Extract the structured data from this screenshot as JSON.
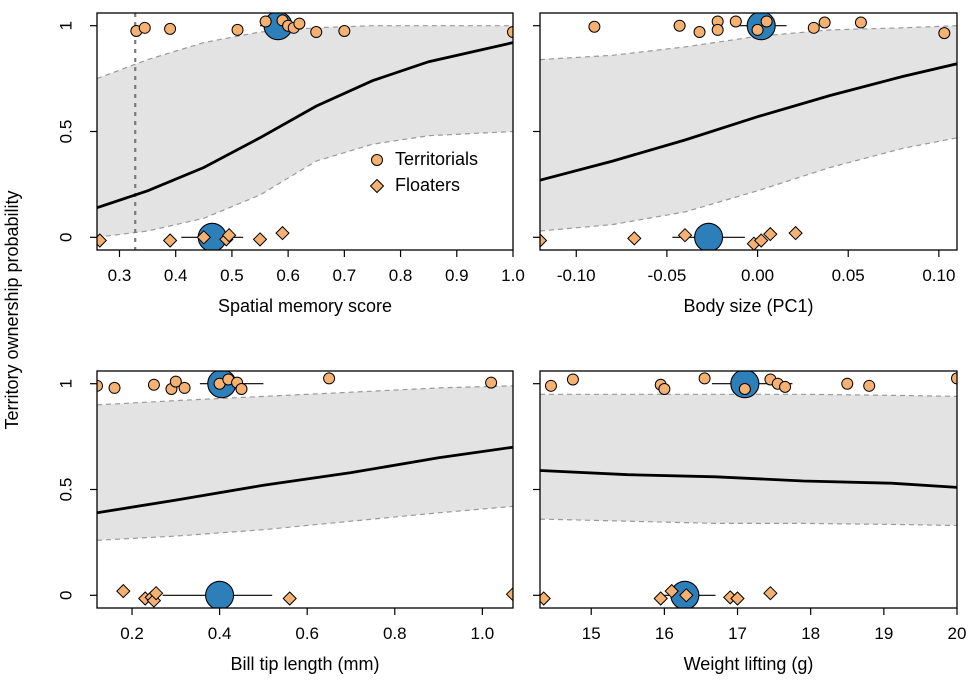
{
  "figure": {
    "ylabel": "Territory ownership probability",
    "legend": {
      "items": [
        {
          "label": "Territorials",
          "shape": "circle"
        },
        {
          "label": "Floaters",
          "shape": "diamond"
        }
      ],
      "placement": "lower-right of top-left panel"
    },
    "colors": {
      "points": "#F5B172",
      "mean": "#2C7FB8",
      "band": "#E3E3E3",
      "band_edge": "#9A9A9A",
      "fit": "#000000",
      "threshold": "#7A7A7A"
    }
  },
  "chart_data": [
    {
      "type": "line",
      "xlabel": "Spatial memory score",
      "xlim": [
        0.26,
        1.0
      ],
      "ylim": [
        -0.06,
        1.06
      ],
      "xticks": [
        0.3,
        0.4,
        0.5,
        0.6,
        0.7,
        0.8,
        0.9,
        1.0
      ],
      "xtick_labels": [
        "0.3",
        "0.4",
        "0.5",
        "0.6",
        "0.7",
        "0.8",
        "0.9",
        "1.0"
      ],
      "yticks": [
        0,
        0.5,
        1
      ],
      "ytick_labels": [
        "0",
        "0.5",
        "1"
      ],
      "fit": {
        "x": [
          0.26,
          0.35,
          0.45,
          0.55,
          0.65,
          0.75,
          0.85,
          1.0
        ],
        "y": [
          0.14,
          0.22,
          0.33,
          0.47,
          0.62,
          0.74,
          0.83,
          0.92
        ]
      },
      "band_upper": {
        "x": [
          0.26,
          0.35,
          0.45,
          0.55,
          0.65,
          0.75,
          0.85,
          1.0
        ],
        "y": [
          0.75,
          0.84,
          0.92,
          0.97,
          0.99,
          1.0,
          1.0,
          1.0
        ]
      },
      "band_lower": {
        "x": [
          0.26,
          0.35,
          0.45,
          0.55,
          0.65,
          0.75,
          0.85,
          1.0
        ],
        "y": [
          0.0,
          0.03,
          0.09,
          0.2,
          0.36,
          0.44,
          0.48,
          0.5
        ]
      },
      "threshold_x": 0.328,
      "territorials": {
        "x": [
          0.33,
          0.345,
          0.39,
          0.51,
          0.56,
          0.59,
          0.6,
          0.61,
          0.62,
          0.65,
          0.7,
          1.0
        ],
        "y": [
          0.975,
          0.99,
          0.985,
          0.98,
          1.02,
          1.025,
          1.0,
          0.99,
          1.01,
          0.97,
          0.975,
          0.97
        ]
      },
      "floaters": {
        "x": [
          0.265,
          0.39,
          0.45,
          0.49,
          0.495,
          0.55,
          0.59
        ],
        "y": [
          -0.015,
          -0.015,
          0.0,
          -0.01,
          0.01,
          -0.01,
          0.02
        ]
      },
      "territorial_mean": {
        "x": 0.582,
        "y": 1.0,
        "ci": [
          0.55,
          0.63
        ]
      },
      "floater_mean": {
        "x": 0.465,
        "y": 0.0,
        "ci": [
          0.41,
          0.52
        ]
      }
    },
    {
      "type": "line",
      "xlabel": "Body size (PC1)",
      "xlim": [
        -0.12,
        0.11
      ],
      "ylim": [
        -0.06,
        1.06
      ],
      "xticks": [
        -0.1,
        -0.05,
        0.0,
        0.05,
        0.1
      ],
      "xtick_labels": [
        "-0.10",
        "-0.05",
        "0.00",
        "0.05",
        "0.10"
      ],
      "yticks": [
        0,
        0.5,
        1
      ],
      "ytick_labels": [
        "",
        "",
        ""
      ],
      "fit": {
        "x": [
          -0.12,
          -0.08,
          -0.04,
          0.0,
          0.04,
          0.08,
          0.11
        ],
        "y": [
          0.27,
          0.36,
          0.46,
          0.57,
          0.67,
          0.76,
          0.82
        ]
      },
      "band_upper": {
        "x": [
          -0.12,
          -0.08,
          -0.04,
          0.0,
          0.04,
          0.08,
          0.11
        ],
        "y": [
          0.84,
          0.86,
          0.9,
          0.95,
          0.98,
          0.99,
          1.0
        ]
      },
      "band_lower": {
        "x": [
          -0.12,
          -0.08,
          -0.04,
          0.0,
          0.04,
          0.08,
          0.11
        ],
        "y": [
          0.03,
          0.06,
          0.12,
          0.22,
          0.33,
          0.42,
          0.47
        ]
      },
      "threshold_x": null,
      "territorials": {
        "x": [
          -0.09,
          -0.043,
          -0.032,
          -0.022,
          -0.022,
          -0.012,
          0.0,
          0.005,
          0.031,
          0.037,
          0.057,
          0.103
        ],
        "y": [
          0.995,
          1.0,
          0.97,
          1.02,
          0.98,
          1.02,
          0.98,
          1.02,
          0.99,
          1.015,
          1.015,
          0.965
        ]
      },
      "floaters": {
        "x": [
          -0.12,
          -0.068,
          -0.04,
          -0.002,
          0.002,
          0.007,
          0.021
        ],
        "y": [
          -0.015,
          -0.005,
          0.01,
          -0.03,
          -0.015,
          0.015,
          0.02
        ]
      },
      "territorial_mean": {
        "x": 0.002,
        "y": 1.0,
        "ci": [
          -0.01,
          0.016
        ]
      },
      "floater_mean": {
        "x": -0.027,
        "y": 0.0,
        "ci": [
          -0.047,
          -0.007
        ]
      }
    },
    {
      "type": "line",
      "xlabel": "Bill tip length (mm)",
      "xlim": [
        0.12,
        1.07
      ],
      "ylim": [
        -0.06,
        1.06
      ],
      "xticks": [
        0.2,
        0.4,
        0.6,
        0.8,
        1.0
      ],
      "xtick_labels": [
        "0.2",
        "0.4",
        "0.6",
        "0.8",
        "1.0"
      ],
      "yticks": [
        0,
        0.5,
        1
      ],
      "ytick_labels": [
        "0",
        "0.5",
        "1"
      ],
      "fit": {
        "x": [
          0.12,
          0.3,
          0.5,
          0.7,
          0.9,
          1.07
        ],
        "y": [
          0.39,
          0.45,
          0.52,
          0.58,
          0.65,
          0.7
        ]
      },
      "band_upper": {
        "x": [
          0.12,
          0.3,
          0.5,
          0.7,
          0.9,
          1.07
        ],
        "y": [
          0.9,
          0.92,
          0.94,
          0.96,
          0.98,
          0.99
        ]
      },
      "band_lower": {
        "x": [
          0.12,
          0.3,
          0.5,
          0.7,
          0.9,
          1.07
        ],
        "y": [
          0.26,
          0.28,
          0.31,
          0.35,
          0.39,
          0.42
        ]
      },
      "threshold_x": null,
      "territorials": {
        "x": [
          0.12,
          0.16,
          0.25,
          0.29,
          0.3,
          0.32,
          0.4,
          0.42,
          0.44,
          0.45,
          0.65,
          1.02
        ],
        "y": [
          0.99,
          0.98,
          0.995,
          0.975,
          1.01,
          0.98,
          1.0,
          1.02,
          1.005,
          0.975,
          1.025,
          1.005
        ]
      },
      "floaters": {
        "x": [
          0.18,
          0.23,
          0.245,
          0.25,
          0.255,
          0.56,
          1.07
        ],
        "y": [
          0.02,
          -0.015,
          -0.01,
          -0.025,
          0.01,
          -0.015,
          0.005
        ]
      },
      "territorial_mean": {
        "x": 0.405,
        "y": 1.0,
        "ci": [
          0.355,
          0.5
        ]
      },
      "floater_mean": {
        "x": 0.4,
        "y": 0.0,
        "ci": [
          0.27,
          0.52
        ]
      }
    },
    {
      "type": "line",
      "xlabel": "Weight lifting (g)",
      "xlim": [
        14.3,
        20.0
      ],
      "ylim": [
        -0.06,
        1.06
      ],
      "xticks": [
        15,
        16,
        17,
        18,
        19,
        20
      ],
      "xtick_labels": [
        "15",
        "16",
        "17",
        "18",
        "19",
        "20"
      ],
      "yticks": [
        0,
        0.5,
        1
      ],
      "ytick_labels": [
        "",
        "",
        ""
      ],
      "fit": {
        "x": [
          14.3,
          15.5,
          16.7,
          17.9,
          19.1,
          20.0
        ],
        "y": [
          0.59,
          0.57,
          0.56,
          0.54,
          0.53,
          0.51
        ]
      },
      "band_upper": {
        "x": [
          14.3,
          15.5,
          16.7,
          17.9,
          19.1,
          20.0
        ],
        "y": [
          0.95,
          0.95,
          0.95,
          0.95,
          0.945,
          0.94
        ]
      },
      "band_lower": {
        "x": [
          14.3,
          15.5,
          16.7,
          17.9,
          19.1,
          20.0
        ],
        "y": [
          0.36,
          0.35,
          0.34,
          0.34,
          0.335,
          0.33
        ]
      },
      "threshold_x": null,
      "territorials": {
        "x": [
          14.45,
          14.75,
          15.95,
          16.0,
          16.55,
          17.1,
          17.45,
          17.55,
          17.65,
          18.5,
          18.8,
          20.0
        ],
        "y": [
          0.99,
          1.02,
          0.995,
          0.975,
          1.025,
          0.975,
          1.02,
          1.0,
          0.985,
          1.0,
          0.99,
          1.025
        ]
      },
      "floaters": {
        "x": [
          14.35,
          15.95,
          16.1,
          16.3,
          16.9,
          17.0,
          17.45
        ],
        "y": [
          -0.015,
          -0.015,
          0.02,
          0.0,
          -0.01,
          -0.015,
          0.01
        ]
      },
      "territorial_mean": {
        "x": 17.1,
        "y": 1.0,
        "ci": [
          16.65,
          17.75
        ]
      },
      "floater_mean": {
        "x": 16.28,
        "y": 0.0,
        "ci": [
          15.95,
          16.7
        ]
      }
    }
  ]
}
